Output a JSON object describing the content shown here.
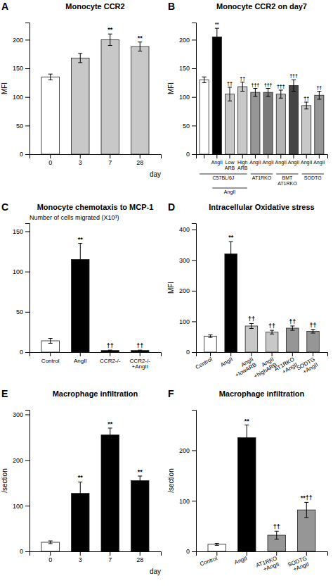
{
  "chart_data": [
    {
      "type": "bar",
      "panel_label": "A",
      "title": "Monocyte CCR2",
      "ylabel": "MFI",
      "xlabel": "day",
      "categories": [
        "0",
        "3",
        "7",
        "28"
      ],
      "values": [
        135,
        168,
        200,
        188
      ],
      "errors": [
        5,
        8,
        10,
        8
      ],
      "significance": [
        null,
        null,
        "**",
        "**"
      ],
      "colors": [
        "#ffffff",
        "#c8c8c8",
        "#c8c8c8",
        "#c8c8c8"
      ],
      "ylim": [
        0,
        230
      ],
      "yticks": [
        0,
        50,
        100,
        150,
        200
      ]
    },
    {
      "type": "bar",
      "panel_label": "B",
      "title": "Monocyte CCR2 on day7",
      "ylabel": "MFI",
      "categories": [
        null,
        "AngII",
        "Low\nARB",
        "High\nARB",
        "AngII",
        "AngII",
        "AngII",
        "AngII",
        "AngII",
        "AngII"
      ],
      "groups": [
        "C57BL/6J",
        "C57BL/6J",
        "C57BL/6J",
        "C57BL/6J",
        "AT1RKO",
        "AT1RKO",
        "BMT\nAT1RKO",
        "BMT\nAT1RKO",
        "SODTG",
        "SODTG"
      ],
      "subgroups": [
        null,
        "AngII",
        "AngII",
        "AngII",
        null,
        null,
        null,
        null,
        null,
        null
      ],
      "values": [
        130,
        205,
        105,
        118,
        108,
        108,
        105,
        120,
        85,
        103
      ],
      "errors": [
        5,
        15,
        12,
        8,
        7,
        7,
        7,
        10,
        6,
        7
      ],
      "significance": [
        null,
        "**",
        "††",
        "††",
        "†††",
        "†††",
        "†††",
        "†††",
        "††",
        "††"
      ],
      "colors": [
        "#ffffff",
        "#000000",
        "#c8c8c8",
        "#c8c8c8",
        "#969696",
        "#7a7a7a",
        "#b4b4b4",
        "#444444",
        "#c8c8c8",
        "#969696"
      ],
      "ylim": [
        0,
        230
      ],
      "yticks": [
        0,
        50,
        100,
        150,
        200
      ]
    },
    {
      "type": "bar",
      "panel_label": "C",
      "title": "Monocyte chemotaxis to MCP-1",
      "subtitle": "Number of cells migrated (X10³)",
      "categories": [
        "Control",
        "AngII",
        "CCR2-/-",
        "CCR2-/-\n+AngII"
      ],
      "values": [
        14,
        115,
        2,
        2
      ],
      "errors": [
        3,
        20,
        0.5,
        0.5
      ],
      "significance": [
        null,
        "**",
        "††",
        "††"
      ],
      "colors": [
        "#ffffff",
        "#000000",
        "#000000",
        "#000000"
      ],
      "ylim": [
        0,
        160
      ],
      "yticks": [
        0,
        50,
        100,
        150
      ]
    },
    {
      "type": "bar",
      "panel_label": "D",
      "title": "Intracellular Oxidative stress",
      "ylabel": "MFI",
      "categories": [
        "Control",
        "AngII",
        "AngII\n+lowARB",
        "AngII\n+highARB",
        "AT1RKO\n+AngII",
        "SODTG\n+AngII"
      ],
      "values": [
        52,
        320,
        85,
        65,
        78,
        68
      ],
      "errors": [
        4,
        40,
        8,
        6,
        7,
        6
      ],
      "significance": [
        null,
        "**",
        "††",
        "††",
        "††",
        "††"
      ],
      "colors": [
        "#ffffff",
        "#000000",
        "#c8c8c8",
        "#c8c8c8",
        "#969696",
        "#969696"
      ],
      "ylim": [
        0,
        420
      ],
      "yticks": [
        0,
        100,
        200,
        300,
        400
      ]
    },
    {
      "type": "bar",
      "panel_label": "E",
      "title": "Macrophage infiltration",
      "ylabel": "/section",
      "xlabel": "day",
      "categories": [
        "0",
        "3",
        "7",
        "28"
      ],
      "values": [
        20,
        127,
        255,
        155
      ],
      "errors": [
        3,
        25,
        15,
        10
      ],
      "significance": [
        null,
        "**",
        "**",
        "**"
      ],
      "colors": [
        "#ffffff",
        "#000000",
        "#000000",
        "#000000"
      ],
      "ylim": [
        0,
        310
      ],
      "yticks": [
        0,
        100,
        200,
        300
      ]
    },
    {
      "type": "bar",
      "panel_label": "F",
      "title": "Macrophage infiltration",
      "ylabel": "/section",
      "categories": [
        "Control",
        "AngII",
        "AT1RKO\n+AngII",
        "SODTG\n+AngII"
      ],
      "values": [
        14,
        225,
        32,
        82
      ],
      "errors": [
        2,
        25,
        8,
        15
      ],
      "significance": [
        null,
        "**",
        "††",
        "**††"
      ],
      "colors": [
        "#ffffff",
        "#000000",
        "#969696",
        "#969696"
      ],
      "ylim": [
        0,
        280
      ],
      "yticks": [
        0,
        100,
        200
      ]
    }
  ]
}
